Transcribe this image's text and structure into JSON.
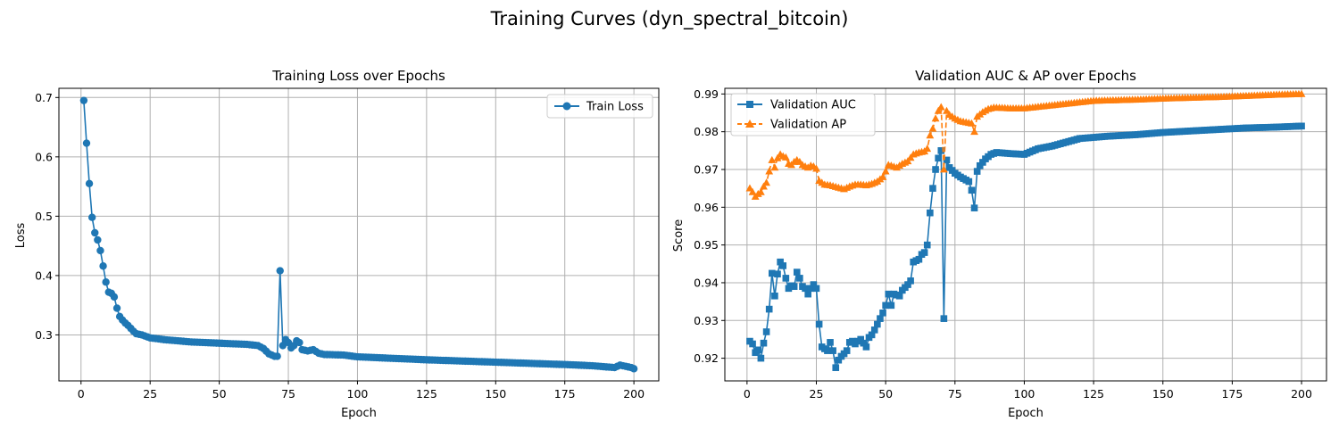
{
  "figure": {
    "suptitle": "Training Curves (dyn_spectral_bitcoin)"
  },
  "colors": {
    "train": "#1f77b4",
    "auc": "#1f77b4",
    "ap": "#ff7f0e",
    "grid": "#b0b0b0"
  },
  "chart_data": [
    {
      "type": "line",
      "title": "Training Loss over Epochs",
      "xlabel": "Epoch",
      "ylabel": "Loss",
      "xlim": [
        -8,
        209
      ],
      "ylim": [
        0.2225,
        0.7155
      ],
      "xticks": [
        0,
        25,
        50,
        75,
        100,
        125,
        150,
        175,
        200
      ],
      "yticks": [
        0.3,
        0.4,
        0.5,
        0.6,
        0.7
      ],
      "ytick_labels": [
        "0.3",
        "0.4",
        "0.5",
        "0.6",
        "0.7"
      ],
      "grid": true,
      "legend_position": "upper right",
      "series": [
        {
          "name": "Train Loss",
          "marker": "circle",
          "linestyle": "solid",
          "keypoints": [
            [
              1,
              0.695
            ],
            [
              2,
              0.623
            ],
            [
              3,
              0.555
            ],
            [
              4,
              0.498
            ],
            [
              5,
              0.472
            ],
            [
              6,
              0.46
            ],
            [
              7,
              0.442
            ],
            [
              8,
              0.416
            ],
            [
              9,
              0.389
            ],
            [
              10,
              0.372
            ],
            [
              11,
              0.37
            ],
            [
              12,
              0.364
            ],
            [
              13,
              0.345
            ],
            [
              14,
              0.331
            ],
            [
              15,
              0.325
            ],
            [
              16,
              0.32
            ],
            [
              17,
              0.316
            ],
            [
              18,
              0.311
            ],
            [
              19,
              0.306
            ],
            [
              20,
              0.302
            ],
            [
              22,
              0.3
            ],
            [
              25,
              0.295
            ],
            [
              30,
              0.292
            ],
            [
              40,
              0.288
            ],
            [
              50,
              0.286
            ],
            [
              60,
              0.284
            ],
            [
              64,
              0.282
            ],
            [
              66,
              0.277
            ],
            [
              68,
              0.268
            ],
            [
              70,
              0.264
            ],
            [
              71,
              0.264
            ],
            [
              72,
              0.408
            ],
            [
              73,
              0.282
            ],
            [
              74,
              0.292
            ],
            [
              75,
              0.287
            ],
            [
              76,
              0.278
            ],
            [
              77,
              0.282
            ],
            [
              78,
              0.29
            ],
            [
              79,
              0.287
            ],
            [
              80,
              0.275
            ],
            [
              82,
              0.273
            ],
            [
              84,
              0.275
            ],
            [
              86,
              0.269
            ],
            [
              88,
              0.267
            ],
            [
              95,
              0.266
            ],
            [
              100,
              0.263
            ],
            [
              125,
              0.258
            ],
            [
              150,
              0.254
            ],
            [
              175,
              0.25
            ],
            [
              185,
              0.248
            ],
            [
              190,
              0.246
            ],
            [
              193,
              0.245
            ],
            [
              195,
              0.249
            ],
            [
              197,
              0.247
            ],
            [
              199,
              0.245
            ],
            [
              200,
              0.243
            ]
          ]
        }
      ]
    },
    {
      "type": "line",
      "title": "Validation AUC & AP over Epochs",
      "xlabel": "Epoch",
      "ylabel": "Score",
      "xlim": [
        -8,
        209
      ],
      "ylim": [
        0.914,
        0.9915
      ],
      "xticks": [
        0,
        25,
        50,
        75,
        100,
        125,
        150,
        175,
        200
      ],
      "yticks": [
        0.92,
        0.93,
        0.94,
        0.95,
        0.96,
        0.97,
        0.98,
        0.99
      ],
      "ytick_labels": [
        "0.92",
        "0.93",
        "0.94",
        "0.95",
        "0.96",
        "0.97",
        "0.98",
        "0.99"
      ],
      "grid": true,
      "legend_position": "upper left",
      "series": [
        {
          "name": "Validation AUC",
          "marker": "square",
          "linestyle": "solid",
          "keypoints": [
            [
              1,
              0.9245
            ],
            [
              2,
              0.9238
            ],
            [
              3,
              0.9215
            ],
            [
              4,
              0.9222
            ],
            [
              5,
              0.92
            ],
            [
              6,
              0.924
            ],
            [
              7,
              0.927
            ],
            [
              8,
              0.933
            ],
            [
              9,
              0.9425
            ],
            [
              10,
              0.9365
            ],
            [
              11,
              0.9423
            ],
            [
              12,
              0.9455
            ],
            [
              13,
              0.9445
            ],
            [
              14,
              0.9412
            ],
            [
              15,
              0.9385
            ],
            [
              16,
              0.9392
            ],
            [
              17,
              0.939
            ],
            [
              18,
              0.9428
            ],
            [
              19,
              0.9412
            ],
            [
              20,
              0.939
            ],
            [
              21,
              0.9385
            ],
            [
              22,
              0.937
            ],
            [
              23,
              0.9385
            ],
            [
              24,
              0.9395
            ],
            [
              25,
              0.9385
            ],
            [
              26,
              0.929
            ],
            [
              27,
              0.923
            ],
            [
              28,
              0.9225
            ],
            [
              29,
              0.922
            ],
            [
              30,
              0.9242
            ],
            [
              31,
              0.922
            ],
            [
              32,
              0.9175
            ],
            [
              33,
              0.9195
            ],
            [
              34,
              0.9205
            ],
            [
              35,
              0.9212
            ],
            [
              36,
              0.922
            ],
            [
              37,
              0.9242
            ],
            [
              38,
              0.9245
            ],
            [
              39,
              0.9238
            ],
            [
              40,
              0.9245
            ],
            [
              41,
              0.925
            ],
            [
              42,
              0.924
            ],
            [
              43,
              0.923
            ],
            [
              44,
              0.9255
            ],
            [
              45,
              0.9262
            ],
            [
              46,
              0.9275
            ],
            [
              47,
              0.929
            ],
            [
              48,
              0.9305
            ],
            [
              49,
              0.932
            ],
            [
              50,
              0.934
            ],
            [
              51,
              0.937
            ],
            [
              52,
              0.934
            ],
            [
              53,
              0.937
            ],
            [
              55,
              0.9365
            ],
            [
              56,
              0.938
            ],
            [
              58,
              0.9395
            ],
            [
              59,
              0.9405
            ],
            [
              60,
              0.9455
            ],
            [
              62,
              0.9462
            ],
            [
              63,
              0.9475
            ],
            [
              64,
              0.948
            ],
            [
              65,
              0.95
            ],
            [
              66,
              0.9585
            ],
            [
              67,
              0.965
            ],
            [
              68,
              0.97
            ],
            [
              69,
              0.973
            ],
            [
              70,
              0.975
            ],
            [
              71,
              0.9305
            ],
            [
              72,
              0.9725
            ],
            [
              73,
              0.9705
            ],
            [
              75,
              0.969
            ],
            [
              77,
              0.968
            ],
            [
              79,
              0.9672
            ],
            [
              80,
              0.9668
            ],
            [
              81,
              0.9645
            ],
            [
              82,
              0.9598
            ],
            [
              83,
              0.9695
            ],
            [
              84,
              0.971
            ],
            [
              86,
              0.9728
            ],
            [
              88,
              0.974
            ],
            [
              90,
              0.9745
            ],
            [
              95,
              0.9742
            ],
            [
              100,
              0.974
            ],
            [
              105,
              0.9755
            ],
            [
              110,
              0.9762
            ],
            [
              115,
              0.9772
            ],
            [
              120,
              0.9782
            ],
            [
              125,
              0.9785
            ],
            [
              130,
              0.9788
            ],
            [
              140,
              0.9792
            ],
            [
              150,
              0.9798
            ],
            [
              160,
              0.9802
            ],
            [
              170,
              0.9806
            ],
            [
              180,
              0.981
            ],
            [
              190,
              0.9812
            ],
            [
              200,
              0.9815
            ]
          ]
        },
        {
          "name": "Validation AP",
          "marker": "triangle",
          "linestyle": "dashed",
          "keypoints": [
            [
              1,
              0.965
            ],
            [
              2,
              0.964
            ],
            [
              3,
              0.9628
            ],
            [
              4,
              0.9635
            ],
            [
              5,
              0.964
            ],
            [
              6,
              0.9655
            ],
            [
              7,
              0.9665
            ],
            [
              8,
              0.9695
            ],
            [
              9,
              0.9725
            ],
            [
              10,
              0.9705
            ],
            [
              11,
              0.973
            ],
            [
              12,
              0.974
            ],
            [
              13,
              0.9735
            ],
            [
              14,
              0.9732
            ],
            [
              15,
              0.9715
            ],
            [
              16,
              0.9712
            ],
            [
              17,
              0.972
            ],
            [
              18,
              0.9725
            ],
            [
              19,
              0.972
            ],
            [
              20,
              0.9712
            ],
            [
              21,
              0.9708
            ],
            [
              22,
              0.9705
            ],
            [
              23,
              0.971
            ],
            [
              24,
              0.9708
            ],
            [
              25,
              0.9702
            ],
            [
              26,
              0.967
            ],
            [
              27,
              0.9665
            ],
            [
              28,
              0.966
            ],
            [
              30,
              0.9658
            ],
            [
              33,
              0.9652
            ],
            [
              35,
              0.9648
            ],
            [
              37,
              0.9655
            ],
            [
              39,
              0.966
            ],
            [
              41,
              0.966
            ],
            [
              43,
              0.9658
            ],
            [
              45,
              0.9662
            ],
            [
              47,
              0.9668
            ],
            [
              49,
              0.968
            ],
            [
              50,
              0.9695
            ],
            [
              51,
              0.9712
            ],
            [
              52,
              0.971
            ],
            [
              54,
              0.9705
            ],
            [
              56,
              0.9715
            ],
            [
              58,
              0.9722
            ],
            [
              60,
              0.974
            ],
            [
              62,
              0.9745
            ],
            [
              64,
              0.9748
            ],
            [
              65,
              0.9755
            ],
            [
              66,
              0.979
            ],
            [
              67,
              0.9808
            ],
            [
              68,
              0.9835
            ],
            [
              69,
              0.9855
            ],
            [
              70,
              0.9865
            ],
            [
              71,
              0.97
            ],
            [
              72,
              0.9855
            ],
            [
              73,
              0.9845
            ],
            [
              75,
              0.9835
            ],
            [
              77,
              0.9828
            ],
            [
              79,
              0.9825
            ],
            [
              81,
              0.9822
            ],
            [
              82,
              0.98
            ],
            [
              83,
              0.984
            ],
            [
              85,
              0.9852
            ],
            [
              87,
              0.986
            ],
            [
              89,
              0.9864
            ],
            [
              95,
              0.9862
            ],
            [
              100,
              0.9862
            ],
            [
              110,
              0.987
            ],
            [
              120,
              0.9878
            ],
            [
              125,
              0.9882
            ],
            [
              130,
              0.9883
            ],
            [
              140,
              0.9885
            ],
            [
              150,
              0.9888
            ],
            [
              160,
              0.989
            ],
            [
              170,
              0.9892
            ],
            [
              180,
              0.9895
            ],
            [
              190,
              0.9898
            ],
            [
              200,
              0.99
            ]
          ]
        }
      ]
    }
  ]
}
